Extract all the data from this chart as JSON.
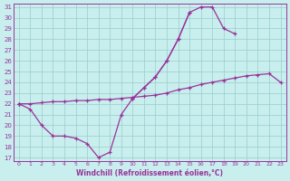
{
  "xlabel": "Windchill (Refroidissement éolien,°C)",
  "bg_color": "#c8eeee",
  "grid_color": "#99cccc",
  "line_color": "#993399",
  "hours": [
    0,
    1,
    2,
    3,
    4,
    5,
    6,
    7,
    8,
    9,
    10,
    11,
    12,
    13,
    14,
    15,
    16,
    17,
    18,
    19,
    20,
    21,
    22,
    23
  ],
  "curve_top": [
    22.0,
    null,
    null,
    null,
    null,
    null,
    null,
    null,
    null,
    null,
    22.5,
    23.5,
    24.5,
    26.0,
    28.0,
    30.5,
    31.0,
    31.0,
    29.0,
    28.5,
    null,
    null,
    null,
    null
  ],
  "curve_mid": [
    22.0,
    22.0,
    22.1,
    22.2,
    22.2,
    22.3,
    22.3,
    22.4,
    22.4,
    22.5,
    22.6,
    22.7,
    22.8,
    23.0,
    23.3,
    23.5,
    23.8,
    24.0,
    24.2,
    24.4,
    24.6,
    24.7,
    24.8,
    24.0
  ],
  "curve_bot": [
    22.0,
    21.5,
    20.0,
    19.0,
    19.0,
    18.8,
    18.3,
    17.0,
    17.5,
    21.0,
    22.5,
    23.5,
    24.5,
    26.0,
    28.0,
    30.5,
    null,
    null,
    null,
    null,
    null,
    null,
    null,
    null
  ],
  "ylim_min": 17,
  "ylim_max": 31,
  "xlim_min": 0,
  "xlim_max": 23,
  "yticks": [
    17,
    18,
    19,
    20,
    21,
    22,
    23,
    24,
    25,
    26,
    27,
    28,
    29,
    30,
    31
  ],
  "xticks": [
    0,
    1,
    2,
    3,
    4,
    5,
    6,
    7,
    8,
    9,
    10,
    11,
    12,
    13,
    14,
    15,
    16,
    17,
    18,
    19,
    20,
    21,
    22,
    23
  ]
}
